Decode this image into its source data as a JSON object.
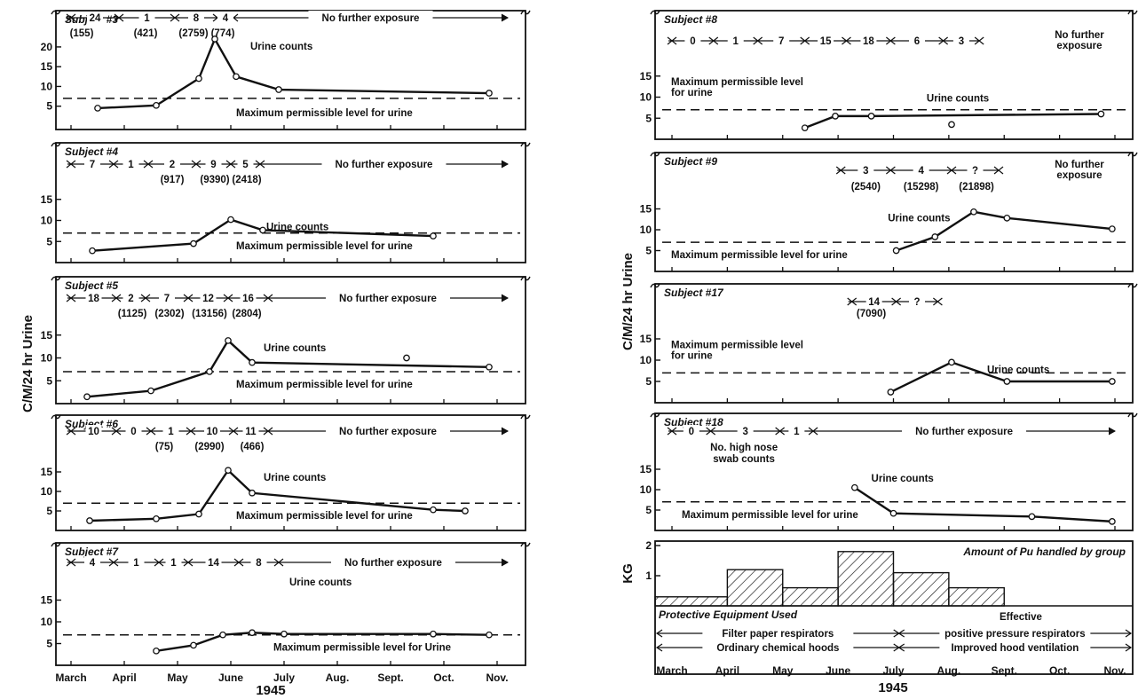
{
  "chart_data": {
    "type": "line",
    "y_axis_label": "C/M/24 hr Urine",
    "year_label": "1945",
    "months_left": [
      "March",
      "April",
      "May",
      "June",
      "July",
      "Aug.",
      "Sept.",
      "Oct.",
      "Nov."
    ],
    "months_right": [
      "March",
      "April",
      "May",
      "June",
      "July",
      "Aug.",
      "Sept.",
      "Oct.",
      "Nov."
    ],
    "series_label": "Urine counts",
    "max_level_label": "Maximum permissible level for urine",
    "max_level_label_alt": "Maximum permissible level for Urine",
    "max_level_label_split": [
      "Maximum permissible level",
      "for urine"
    ],
    "max_level_value": 7,
    "no_exposure_label": "No further exposure",
    "panels": [
      {
        "id": "s3",
        "subject": "Subject #3",
        "ylim": [
          0,
          22
        ],
        "yticks": [
          5,
          10,
          15,
          20
        ],
        "exposure": [
          "24",
          "1",
          "8",
          "4"
        ],
        "exposure_paren": [
          "(155)",
          "(421)",
          "(2759)",
          "(774)"
        ],
        "points": [
          [
            0.5,
            4.5
          ],
          [
            1.6,
            5.2
          ],
          [
            2.4,
            12
          ],
          [
            2.7,
            22
          ],
          [
            3.1,
            12.5
          ],
          [
            3.9,
            9.2
          ],
          [
            7.85,
            8.3
          ]
        ]
      },
      {
        "id": "s4",
        "subject": "Subject #4",
        "ylim": [
          0,
          20
        ],
        "yticks": [
          5,
          10,
          15
        ],
        "exposure": [
          "7",
          "1",
          "2",
          "9",
          "5"
        ],
        "exposure_paren": [
          "(917)",
          "(9390)",
          "(2418)"
        ],
        "points": [
          [
            0.4,
            2.8
          ],
          [
            2.3,
            4.5
          ],
          [
            3.0,
            10.2
          ],
          [
            3.6,
            7.7
          ],
          [
            6.8,
            6.3
          ]
        ]
      },
      {
        "id": "s5",
        "subject": "Subject #5",
        "ylim": [
          0,
          20
        ],
        "yticks": [
          5,
          10,
          15
        ],
        "exposure": [
          "18",
          "2",
          "7",
          "12",
          "16"
        ],
        "exposure_paren": [
          "(1125)",
          "(2302)",
          "(13156)",
          "(2804)"
        ],
        "points": [
          [
            0.3,
            1.5
          ],
          [
            1.5,
            2.8
          ],
          [
            2.6,
            7
          ],
          [
            2.95,
            13.8
          ],
          [
            3.4,
            9
          ],
          [
            7.85,
            8
          ]
        ],
        "extra_points": [
          [
            6.3,
            10
          ]
        ]
      },
      {
        "id": "s6",
        "subject": "Subject #6",
        "ylim": [
          0,
          20
        ],
        "yticks": [
          5,
          10,
          15
        ],
        "exposure": [
          "10",
          "0",
          "1",
          "10",
          "11"
        ],
        "exposure_paren": [
          "(75)",
          "(2990)",
          "(466)"
        ],
        "points": [
          [
            0.35,
            2.5
          ],
          [
            1.6,
            3
          ],
          [
            2.4,
            4.2
          ],
          [
            2.95,
            15.4
          ],
          [
            3.4,
            9.6
          ],
          [
            6.8,
            5.3
          ],
          [
            7.4,
            5
          ]
        ]
      },
      {
        "id": "s7",
        "subject": "Subject #7",
        "ylim": [
          0,
          20
        ],
        "yticks": [
          5,
          10,
          15
        ],
        "exposure": [
          "4",
          "1",
          "1",
          "14",
          "8"
        ],
        "exposure_paren": [],
        "points": [
          [
            1.6,
            3.3
          ],
          [
            2.3,
            4.6
          ],
          [
            2.85,
            7
          ],
          [
            3.4,
            7.5
          ],
          [
            4.0,
            7.2
          ],
          [
            6.8,
            7.2
          ],
          [
            7.85,
            7
          ]
        ]
      },
      {
        "id": "s8",
        "subject": "Subject #8",
        "ylim": [
          0,
          20
        ],
        "yticks": [
          5,
          10,
          15
        ],
        "exposure": [
          "0",
          "1",
          "7",
          "15",
          "18",
          "6",
          "3"
        ],
        "exposure_paren": [],
        "end_note": [
          "No further",
          "exposure"
        ],
        "points": [
          [
            2.4,
            2.7
          ],
          [
            2.95,
            5.5
          ],
          [
            3.6,
            5.5
          ],
          [
            7.75,
            6
          ]
        ],
        "extra_points": [
          [
            5.05,
            3.5
          ]
        ]
      },
      {
        "id": "s9",
        "subject": "Subject #9",
        "ylim": [
          0,
          20
        ],
        "yticks": [
          5,
          10,
          15
        ],
        "exposure": [
          "3",
          "4",
          "?"
        ],
        "exposure_paren": [
          "(2540)",
          "(15298)",
          "(21898)"
        ],
        "end_note": [
          "No further",
          "exposure"
        ],
        "points": [
          [
            4.05,
            5
          ],
          [
            4.75,
            8.3
          ],
          [
            5.45,
            14.3
          ],
          [
            6.05,
            12.8
          ],
          [
            7.95,
            10.2
          ]
        ]
      },
      {
        "id": "s17",
        "subject": "Subject #17",
        "ylim": [
          0,
          20
        ],
        "yticks": [
          5,
          10,
          15
        ],
        "exposure": [
          "14",
          "?"
        ],
        "exposure_paren": [
          "(7090)"
        ],
        "points": [
          [
            3.95,
            2.5
          ],
          [
            5.05,
            9.5
          ],
          [
            6.05,
            5
          ],
          [
            7.95,
            5
          ]
        ]
      },
      {
        "id": "s18",
        "subject": "Subject #18",
        "ylim": [
          0,
          20
        ],
        "yticks": [
          5,
          10,
          15
        ],
        "exposure": [
          "0",
          "3",
          "1"
        ],
        "exposure_paren": [],
        "note": [
          "No. high nose",
          "swab counts"
        ],
        "points": [
          [
            3.3,
            10.5
          ],
          [
            4.0,
            4.2
          ],
          [
            6.5,
            3.4
          ],
          [
            7.95,
            2.2
          ]
        ]
      }
    ],
    "pu_panel": {
      "title": "Amount of Pu handled by group",
      "ylabel": "KG",
      "ylim": [
        0,
        2
      ],
      "yticks": [
        1,
        2
      ],
      "steps": [
        [
          0,
          1,
          0.3
        ],
        [
          1,
          2,
          1.2
        ],
        [
          2,
          3,
          0.6
        ],
        [
          3,
          4,
          1.8
        ],
        [
          4,
          5,
          1.1
        ],
        [
          5,
          6,
          0.6
        ]
      ],
      "protective_header": "Protective Equipment Used",
      "effective_label": "Effective",
      "respirator_periods": [
        "Filter paper respirators",
        "positive pressure respirators"
      ],
      "hood_periods": [
        "Ordinary chemical hoods",
        "Improved hood ventilation"
      ]
    }
  }
}
